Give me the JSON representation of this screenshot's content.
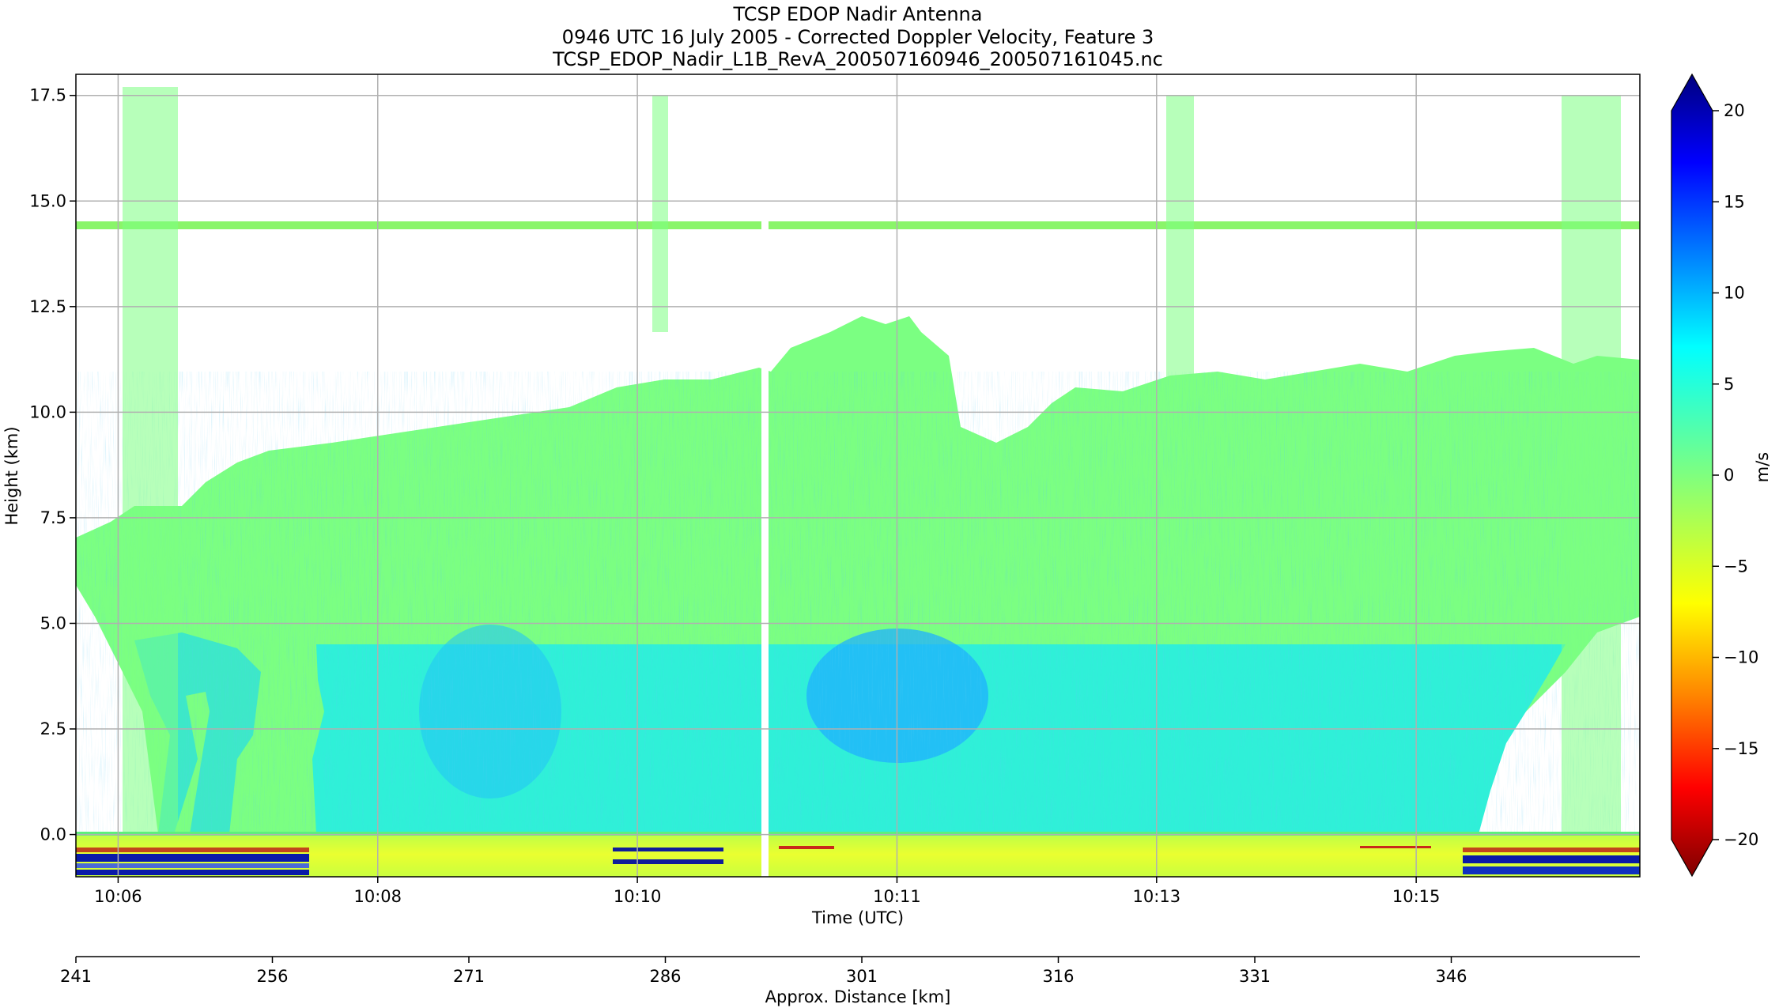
{
  "chart_data": {
    "type": "heatmap",
    "title": [
      "TCSP EDOP Nadir Antenna",
      "0946 UTC 16 July 2005 - Corrected Doppler Velocity, Feature 3",
      "TCSP_EDOP_Nadir_L1B_RevA_200507160946_200507161045.nc"
    ],
    "xlabel": "Time (UTC)",
    "ylabel": "Height (km)",
    "x_ticks": [
      "10:06",
      "10:08",
      "10:10",
      "10:11",
      "10:13",
      "10:15"
    ],
    "y_ticks": [
      "0.0",
      "2.5",
      "5.0",
      "7.5",
      "10.0",
      "12.5",
      "15.0",
      "17.5"
    ],
    "ylim": [
      -1.0,
      18.0
    ],
    "grid": true,
    "colorbar": {
      "label": "m/s",
      "ticks": [
        "20",
        "15",
        "10",
        "5",
        "0",
        "−5",
        "−10",
        "−15",
        "−20"
      ],
      "range": [
        -20,
        20
      ],
      "colors": [
        "#7f0000",
        "#ff0000",
        "#ff7f00",
        "#ffff00",
        "#7fff7f",
        "#00ffff",
        "#007fff",
        "#0000ff",
        "#00007f"
      ]
    },
    "secondary_axis": {
      "label": "Approx. Distance [km]",
      "ticks": [
        "241",
        "256",
        "271",
        "286",
        "301",
        "316",
        "331",
        "346"
      ]
    },
    "features": {
      "cloud_fill_color": "#7bff82",
      "rain_fill_color": "#2ff0d8",
      "strong_updraft_color": "#1fb0ff",
      "surface_band_color": "#d9ff3a",
      "bright_band_height_km": 4.5,
      "tropopause_echo_height_km": 14.4,
      "data_gap_time": "10:10:55"
    }
  }
}
